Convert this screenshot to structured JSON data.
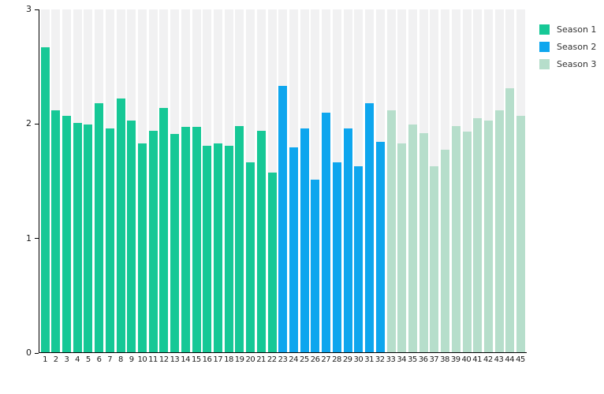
{
  "page": {
    "background_color": "#ffffff",
    "axis_color": "#000000",
    "label_color": "#1a1a1a"
  },
  "chart_data": {
    "type": "bar",
    "title": "",
    "xlabel": "",
    "ylabel": "",
    "ylim": [
      0,
      3
    ],
    "yticks": [
      "0",
      "1",
      "2",
      "3"
    ],
    "ytick_values": [
      0,
      1,
      2,
      3
    ],
    "grid": false,
    "legend_position": "top-right",
    "track_color": "#f1f1f2",
    "categories": [
      "1",
      "2",
      "3",
      "4",
      "5",
      "6",
      "7",
      "8",
      "9",
      "10",
      "11",
      "12",
      "13",
      "14",
      "15",
      "16",
      "17",
      "18",
      "19",
      "20",
      "21",
      "22",
      "23",
      "24",
      "25",
      "26",
      "27",
      "28",
      "29",
      "30",
      "31",
      "32",
      "33",
      "34",
      "35",
      "36",
      "37",
      "38",
      "39",
      "40",
      "41",
      "42",
      "43",
      "44",
      "45"
    ],
    "series": [
      {
        "name": "Season 1",
        "color": "#16c896",
        "start_category": "1",
        "values": [
          2.67,
          2.12,
          2.07,
          2.01,
          1.99,
          2.18,
          1.96,
          2.22,
          2.03,
          1.83,
          1.94,
          2.14,
          1.91,
          1.97,
          1.97,
          1.81,
          1.83,
          1.81,
          1.98,
          1.66,
          1.94,
          1.57
        ]
      },
      {
        "name": "Season 2",
        "color": "#0ea6ee",
        "start_category": "23",
        "values": [
          2.33,
          1.79,
          1.96,
          1.51,
          2.1,
          1.66,
          1.96,
          1.63,
          2.18,
          1.84
        ]
      },
      {
        "name": "Season 3",
        "color": "#b6decb",
        "start_category": "33",
        "values": [
          2.12,
          1.83,
          1.99,
          1.92,
          1.63,
          1.77,
          1.98,
          1.93,
          2.05,
          2.03,
          2.12,
          2.31,
          2.07
        ]
      }
    ]
  },
  "legend": {
    "items": [
      {
        "label": "Season 1"
      },
      {
        "label": "Season 2"
      },
      {
        "label": "Season 3"
      }
    ]
  }
}
